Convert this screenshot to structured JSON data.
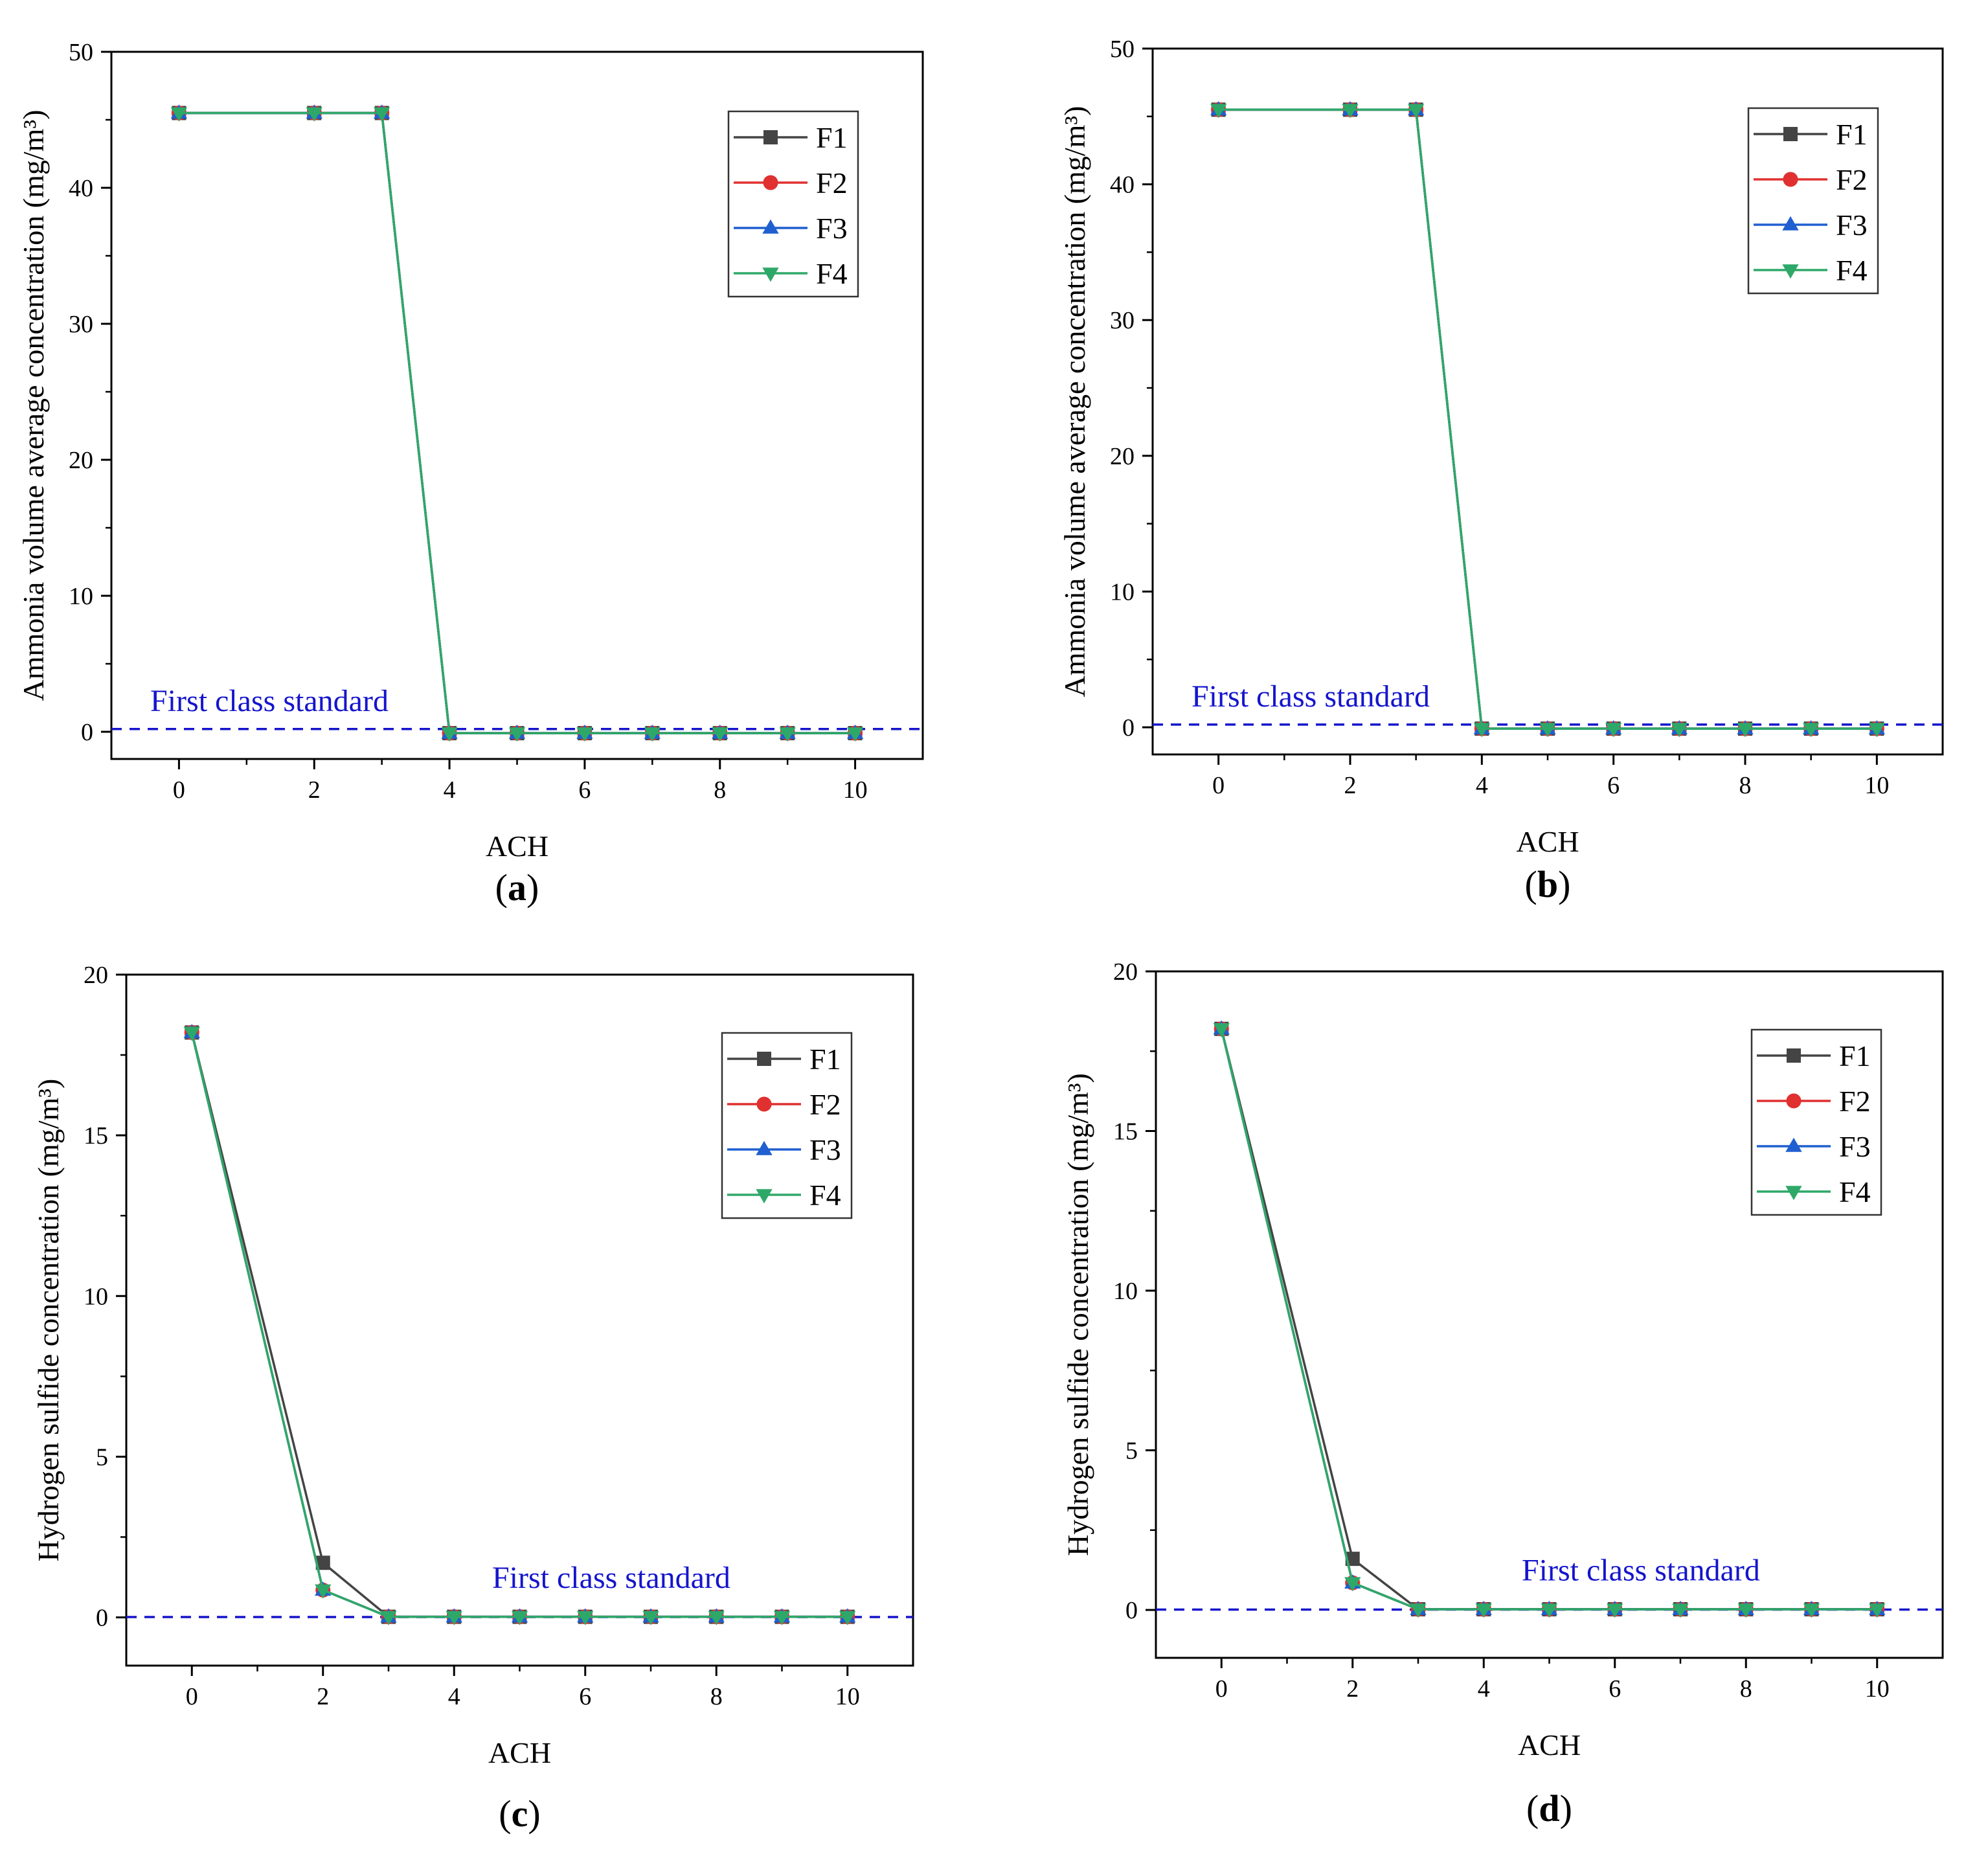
{
  "chart_data": [
    {
      "type": "line",
      "panel_label": "(a)",
      "panel_letter": "a",
      "xlabel": "ACH",
      "ylabel": "Ammonia volume average concentration (mg/m³)",
      "xlim": [
        -1,
        11
      ],
      "ylim": [
        -2,
        50
      ],
      "xticks": [
        0,
        2,
        4,
        6,
        8,
        10
      ],
      "yticks": [
        0,
        10,
        20,
        30,
        40,
        50
      ],
      "x": [
        0,
        2,
        3,
        4,
        5,
        6,
        7,
        8,
        9,
        10
      ],
      "series": [
        {
          "name": "F1",
          "marker": "square",
          "color": "#444444",
          "values": [
            45.5,
            45.5,
            45.5,
            -0.1,
            -0.1,
            -0.1,
            -0.1,
            -0.1,
            -0.1,
            -0.1
          ]
        },
        {
          "name": "F2",
          "marker": "circle",
          "color": "#e03030",
          "values": [
            45.5,
            45.5,
            45.5,
            -0.1,
            -0.1,
            -0.1,
            -0.1,
            -0.1,
            -0.1,
            -0.1
          ]
        },
        {
          "name": "F3",
          "marker": "triangle-up",
          "color": "#1f5fd0",
          "values": [
            45.5,
            45.5,
            45.5,
            -0.1,
            -0.1,
            -0.1,
            -0.1,
            -0.1,
            -0.1,
            -0.1
          ]
        },
        {
          "name": "F4",
          "marker": "triangle-down",
          "color": "#2ea868",
          "values": [
            45.5,
            45.5,
            45.5,
            -0.1,
            -0.1,
            -0.1,
            -0.1,
            -0.1,
            -0.1,
            -0.1
          ]
        }
      ],
      "reference_line": {
        "label": "First class standard",
        "value": 0.2,
        "color": "#1515cc"
      },
      "legend_position": "top-right"
    },
    {
      "type": "line",
      "panel_label": "(b)",
      "panel_letter": "b",
      "xlabel": "ACH",
      "ylabel": "Ammonia volume average concentration (mg/m³)",
      "xlim": [
        -1,
        11
      ],
      "ylim": [
        -2,
        50
      ],
      "xticks": [
        0,
        2,
        4,
        6,
        8,
        10
      ],
      "yticks": [
        0,
        10,
        20,
        30,
        40,
        50
      ],
      "x": [
        0,
        2,
        3,
        4,
        5,
        6,
        7,
        8,
        9,
        10
      ],
      "series": [
        {
          "name": "F1",
          "marker": "square",
          "color": "#444444",
          "values": [
            45.5,
            45.5,
            45.5,
            -0.1,
            -0.1,
            -0.1,
            -0.1,
            -0.1,
            -0.1,
            -0.1
          ]
        },
        {
          "name": "F2",
          "marker": "circle",
          "color": "#e03030",
          "values": [
            45.5,
            45.5,
            45.5,
            -0.1,
            -0.1,
            -0.1,
            -0.1,
            -0.1,
            -0.1,
            -0.1
          ]
        },
        {
          "name": "F3",
          "marker": "triangle-up",
          "color": "#1f5fd0",
          "values": [
            45.5,
            45.5,
            45.5,
            -0.1,
            -0.1,
            -0.1,
            -0.1,
            -0.1,
            -0.1,
            -0.1
          ]
        },
        {
          "name": "F4",
          "marker": "triangle-down",
          "color": "#2ea868",
          "values": [
            45.5,
            45.5,
            45.5,
            -0.1,
            -0.1,
            -0.1,
            -0.1,
            -0.1,
            -0.1,
            -0.1
          ]
        }
      ],
      "reference_line": {
        "label": "First class standard",
        "value": 0.2,
        "color": "#1515cc"
      },
      "legend_position": "top-right"
    },
    {
      "type": "line",
      "panel_label": "(c)",
      "panel_letter": "c",
      "xlabel": "ACH",
      "ylabel": "Hydrogen sulfide concentration (mg/m³)",
      "xlim": [
        -1,
        11
      ],
      "ylim": [
        -1.5,
        20
      ],
      "xticks": [
        0,
        2,
        4,
        6,
        8,
        10
      ],
      "yticks": [
        0,
        5,
        10,
        15,
        20
      ],
      "x": [
        0,
        2,
        3,
        4,
        5,
        6,
        7,
        8,
        9,
        10
      ],
      "series": [
        {
          "name": "F1",
          "marker": "square",
          "color": "#444444",
          "values": [
            18.2,
            1.7,
            0.02,
            0.02,
            0.02,
            0.02,
            0.02,
            0.02,
            0.02,
            0.02
          ]
        },
        {
          "name": "F2",
          "marker": "circle",
          "color": "#e03030",
          "values": [
            18.2,
            0.85,
            0.02,
            0.02,
            0.02,
            0.02,
            0.02,
            0.02,
            0.02,
            0.02
          ]
        },
        {
          "name": "F3",
          "marker": "triangle-up",
          "color": "#1f5fd0",
          "values": [
            18.2,
            0.85,
            0.02,
            0.02,
            0.02,
            0.02,
            0.02,
            0.02,
            0.02,
            0.02
          ]
        },
        {
          "name": "F4",
          "marker": "triangle-down",
          "color": "#2ea868",
          "values": [
            18.2,
            0.85,
            0.02,
            0.02,
            0.02,
            0.02,
            0.02,
            0.02,
            0.02,
            0.02
          ]
        }
      ],
      "reference_line": {
        "label": "First class standard",
        "value": 0.01,
        "color": "#1515cc"
      },
      "legend_position": "top-right"
    },
    {
      "type": "line",
      "panel_label": "(d)",
      "panel_letter": "d",
      "xlabel": "ACH",
      "ylabel": "Hydrogen sulfide concentration (mg/m³)",
      "xlim": [
        -1,
        11
      ],
      "ylim": [
        -1.5,
        20
      ],
      "xticks": [
        0,
        2,
        4,
        6,
        8,
        10
      ],
      "yticks": [
        0,
        5,
        10,
        15,
        20
      ],
      "x": [
        0,
        2,
        3,
        4,
        5,
        6,
        7,
        8,
        9,
        10
      ],
      "series": [
        {
          "name": "F1",
          "marker": "square",
          "color": "#444444",
          "values": [
            18.2,
            1.6,
            0.02,
            0.02,
            0.02,
            0.02,
            0.02,
            0.02,
            0.02,
            0.02
          ]
        },
        {
          "name": "F2",
          "marker": "circle",
          "color": "#e03030",
          "values": [
            18.2,
            0.85,
            0.02,
            0.02,
            0.02,
            0.02,
            0.02,
            0.02,
            0.02,
            0.02
          ]
        },
        {
          "name": "F3",
          "marker": "triangle-up",
          "color": "#1f5fd0",
          "values": [
            18.2,
            0.85,
            0.02,
            0.02,
            0.02,
            0.02,
            0.02,
            0.02,
            0.02,
            0.02
          ]
        },
        {
          "name": "F4",
          "marker": "triangle-down",
          "color": "#2ea868",
          "values": [
            18.2,
            0.85,
            0.02,
            0.02,
            0.02,
            0.02,
            0.02,
            0.02,
            0.02,
            0.02
          ]
        }
      ],
      "reference_line": {
        "label": "First class standard",
        "value": 0.01,
        "color": "#1515cc"
      },
      "legend_position": "top-right"
    }
  ]
}
